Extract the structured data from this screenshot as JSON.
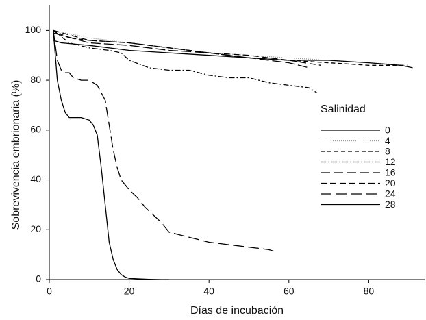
{
  "chart_data": {
    "type": "line",
    "x_label": "Días de incubación",
    "y_label": "Sobrevivencia embrionaria (%)",
    "legend_title": "Salinidad",
    "xlim": [
      0,
      94
    ],
    "xticks": [
      0,
      20,
      40,
      60,
      80
    ],
    "ylim": [
      0,
      110
    ],
    "yticks": [
      0,
      20,
      40,
      60,
      80,
      100
    ],
    "series": [
      {
        "name": "0",
        "color": "#000000",
        "x": [
          1,
          2,
          3,
          4,
          5,
          6,
          8,
          10,
          11,
          12,
          13,
          14,
          15,
          16,
          17,
          18,
          19,
          20,
          22,
          25,
          28,
          30
        ],
        "values": [
          100,
          80,
          72,
          67,
          65,
          65,
          65,
          64,
          62,
          58,
          45,
          30,
          15,
          8,
          4,
          2,
          1,
          0.5,
          0.3,
          0.1,
          0,
          0
        ]
      },
      {
        "name": "4",
        "color": "#999999",
        "dash": "1,2",
        "x": [
          1,
          10,
          20,
          30,
          40,
          50,
          60,
          70,
          80,
          90
        ],
        "values": [
          100,
          97,
          95,
          93,
          91,
          90,
          89,
          88,
          87,
          86
        ]
      },
      {
        "name": "8",
        "color": "#000000",
        "dash": "6,4",
        "x": [
          1,
          5,
          10,
          20,
          30,
          40,
          50,
          60,
          70,
          80,
          89
        ],
        "values": [
          100,
          97,
          96,
          95,
          93,
          91,
          89,
          88,
          87,
          86,
          86
        ]
      },
      {
        "name": "12",
        "color": "#000000",
        "dash": "8,3,2,3",
        "x": [
          1,
          5,
          10,
          15,
          18,
          20,
          25,
          30,
          35,
          40,
          45,
          50,
          55,
          60,
          65,
          67
        ],
        "values": [
          100,
          95,
          93,
          92,
          91,
          88,
          85,
          84,
          84,
          82,
          81,
          81,
          79,
          78,
          77,
          75
        ]
      },
      {
        "name": "16",
        "color": "#000000",
        "dash": "14,5",
        "x": [
          1,
          10,
          20,
          30,
          40,
          50,
          60,
          65
        ],
        "values": [
          99,
          95,
          94,
          92,
          91,
          89,
          87,
          85
        ]
      },
      {
        "name": "20",
        "color": "#000000",
        "dash": "9,5",
        "x": [
          1,
          10,
          20,
          30,
          40,
          50,
          60,
          68
        ],
        "values": [
          100,
          96,
          95,
          93,
          91,
          90,
          88,
          86
        ]
      },
      {
        "name": "24",
        "color": "#000000",
        "dash": "16,6",
        "x": [
          1,
          2,
          3,
          4,
          5,
          6,
          8,
          10,
          12,
          14,
          15,
          16,
          17,
          18,
          20,
          22,
          24,
          26,
          28,
          30,
          35,
          40,
          45,
          50,
          55,
          57
        ],
        "values": [
          100,
          88,
          84,
          83,
          83,
          81,
          80,
          80,
          78,
          72,
          62,
          52,
          45,
          40,
          36,
          33,
          29,
          26,
          23,
          19,
          17,
          15,
          14,
          13,
          12,
          11
        ]
      },
      {
        "name": "28",
        "color": "#000000",
        "x": [
          1,
          3,
          10,
          20,
          30,
          40,
          50,
          60,
          70,
          80,
          88,
          91
        ],
        "values": [
          96,
          95,
          94,
          92,
          91,
          90,
          89,
          88,
          88,
          87,
          86,
          85
        ]
      }
    ]
  }
}
